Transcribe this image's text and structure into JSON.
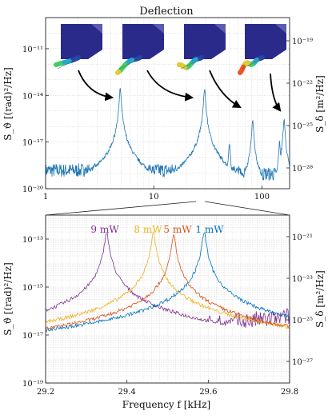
{
  "colors": {
    "top_trace": "#1f77b4",
    "series": [
      "#7e2f8e",
      "#edb120",
      "#d95319",
      "#0072bd"
    ],
    "beam": "#2a2a8a"
  },
  "top": {
    "title": "Deflection",
    "ylabel_left": "S_ϑ [(rad)²/Hz]",
    "ylabel_right": "S_δ [m²/Hz]",
    "xticks": [
      "1",
      "10",
      "100"
    ],
    "yticks_left": [
      "10⁻¹¹",
      "10⁻¹⁴",
      "10⁻¹⁷",
      "10⁻²⁰"
    ],
    "yticks_right": [
      "10⁻¹⁹",
      "10⁻²²",
      "10⁻²⁵",
      "10⁻²⁸"
    ],
    "mode_shapes": [
      "mode-1",
      "mode-2",
      "mode-3",
      "mode-4"
    ]
  },
  "bottom": {
    "xlabel": "Frequency f [kHz]",
    "ylabel_left": "S_ϑ [(rad)²/Hz]",
    "ylabel_right": "S_δ [m²/Hz]",
    "xticks": [
      "29.2",
      "29.4",
      "29.6",
      "29.8"
    ],
    "yticks_left": [
      "10⁻¹³",
      "10⁻¹⁵",
      "10⁻¹⁷",
      "10⁻¹⁹"
    ],
    "yticks_right": [
      "10⁻²¹",
      "10⁻²³",
      "10⁻²⁵",
      "10⁻²⁷"
    ],
    "legend": [
      "9 mW",
      "8 mW",
      "5 mW",
      "1 mW"
    ]
  },
  "chart_data": [
    {
      "type": "line",
      "title": "Deflection",
      "xlabel": "",
      "ylabel": "S_ϑ [(rad)²/Hz]",
      "ylabel_right": "S_δ [m²/Hz]",
      "xscale": "log",
      "yscale": "log",
      "xlim": [
        1,
        180
      ],
      "ylim": [
        1e-20,
        1e-09
      ],
      "grid": true,
      "series": [
        {
          "peaks_x": [
            4.9,
            29.5,
            50.0,
            82.0,
            145.0,
            160.0
          ],
          "peaks_y": [
            3e-14,
            3e-14,
            1e-17,
            3e-16,
            1e-17,
            3e-16
          ],
          "noise_floor_y": 1.5e-19
        }
      ]
    },
    {
      "type": "line",
      "title": "",
      "xlabel": "Frequency f [kHz]",
      "ylabel": "S_ϑ [(rad)²/Hz]",
      "ylabel_right": "S_δ [m²/Hz]",
      "xscale": "linear",
      "yscale": "log",
      "xlim": [
        29.2,
        29.8
      ],
      "ylim": [
        1e-19,
        1e-12
      ],
      "grid": true,
      "series": [
        {
          "name": "9 mW",
          "peak_x": 29.35,
          "peak_y": 2e-13,
          "floor_y": 6e-18
        },
        {
          "name": "8 mW",
          "peak_x": 29.465,
          "peak_y": 2e-13,
          "floor_y": 5e-19
        },
        {
          "name": "5 mW",
          "peak_x": 29.515,
          "peak_y": 1.5e-13,
          "floor_y": 5e-19
        },
        {
          "name": "1 mW",
          "peak_x": 29.59,
          "peak_y": 2e-13,
          "floor_y": 8e-19
        }
      ]
    }
  ]
}
